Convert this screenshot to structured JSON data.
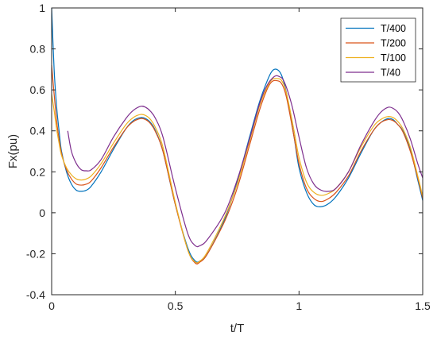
{
  "chart_data": {
    "type": "line",
    "title": "",
    "xlabel": "t/T",
    "ylabel": "Fx(pu)",
    "xlim": [
      0,
      1.5
    ],
    "ylim": [
      -0.4,
      1.0
    ],
    "xticks": [
      0,
      0.5,
      1,
      1.5
    ],
    "xtick_labels": [
      "0",
      "0.5",
      "1",
      "1.5"
    ],
    "yticks": [
      -0.4,
      -0.2,
      0,
      0.2,
      0.4,
      0.6,
      0.8,
      1.0
    ],
    "ytick_labels": [
      "-0.4",
      "-0.2",
      "0",
      "0.2",
      "0.4",
      "0.6",
      "0.8",
      "1"
    ],
    "grid": false,
    "legend_position": "top-right",
    "series": [
      {
        "name": "T/400",
        "color": "#0072BD",
        "x": [
          0.0,
          0.01,
          0.02,
          0.03,
          0.04,
          0.06,
          0.08,
          0.1,
          0.12,
          0.14,
          0.16,
          0.2,
          0.25,
          0.3,
          0.33,
          0.36,
          0.38,
          0.4,
          0.42,
          0.45,
          0.5,
          0.55,
          0.58,
          0.6,
          0.63,
          0.7,
          0.75,
          0.8,
          0.84,
          0.87,
          0.89,
          0.91,
          0.93,
          0.95,
          0.98,
          1.0,
          1.03,
          1.06,
          1.09,
          1.12,
          1.15,
          1.2,
          1.25,
          1.3,
          1.33,
          1.36,
          1.38,
          1.4,
          1.42,
          1.45,
          1.48,
          1.5
        ],
        "y": [
          1.0,
          0.7,
          0.52,
          0.4,
          0.3,
          0.2,
          0.14,
          0.11,
          0.105,
          0.11,
          0.13,
          0.2,
          0.31,
          0.41,
          0.45,
          0.465,
          0.46,
          0.44,
          0.4,
          0.3,
          0.04,
          -0.17,
          -0.235,
          -0.235,
          -0.2,
          -0.03,
          0.15,
          0.37,
          0.54,
          0.64,
          0.69,
          0.7,
          0.67,
          0.58,
          0.37,
          0.22,
          0.1,
          0.04,
          0.03,
          0.045,
          0.08,
          0.17,
          0.29,
          0.4,
          0.44,
          0.46,
          0.455,
          0.43,
          0.4,
          0.31,
          0.16,
          0.06
        ]
      },
      {
        "name": "T/200",
        "color": "#D95319",
        "x": [
          0.0,
          0.01,
          0.02,
          0.03,
          0.04,
          0.06,
          0.08,
          0.1,
          0.12,
          0.14,
          0.16,
          0.2,
          0.25,
          0.3,
          0.33,
          0.36,
          0.38,
          0.4,
          0.42,
          0.45,
          0.5,
          0.55,
          0.58,
          0.6,
          0.63,
          0.7,
          0.75,
          0.8,
          0.84,
          0.87,
          0.89,
          0.91,
          0.93,
          0.95,
          0.98,
          1.0,
          1.03,
          1.06,
          1.09,
          1.12,
          1.15,
          1.2,
          1.25,
          1.3,
          1.33,
          1.36,
          1.38,
          1.4,
          1.42,
          1.45,
          1.48,
          1.5
        ],
        "y": [
          0.72,
          0.58,
          0.45,
          0.36,
          0.29,
          0.21,
          0.165,
          0.14,
          0.135,
          0.14,
          0.155,
          0.22,
          0.32,
          0.41,
          0.445,
          0.46,
          0.455,
          0.435,
          0.395,
          0.3,
          0.04,
          -0.18,
          -0.245,
          -0.24,
          -0.2,
          -0.04,
          0.12,
          0.33,
          0.5,
          0.6,
          0.64,
          0.645,
          0.63,
          0.56,
          0.37,
          0.24,
          0.12,
          0.07,
          0.055,
          0.07,
          0.1,
          0.18,
          0.3,
          0.4,
          0.44,
          0.455,
          0.45,
          0.43,
          0.395,
          0.3,
          0.17,
          0.07
        ]
      },
      {
        "name": "T/100",
        "color": "#EDB120",
        "x": [
          0.0,
          0.01,
          0.02,
          0.03,
          0.04,
          0.06,
          0.08,
          0.1,
          0.12,
          0.14,
          0.16,
          0.2,
          0.25,
          0.3,
          0.33,
          0.36,
          0.38,
          0.4,
          0.42,
          0.45,
          0.5,
          0.55,
          0.58,
          0.6,
          0.63,
          0.7,
          0.75,
          0.8,
          0.84,
          0.87,
          0.89,
          0.91,
          0.93,
          0.95,
          0.98,
          1.0,
          1.03,
          1.06,
          1.09,
          1.12,
          1.15,
          1.2,
          1.25,
          1.3,
          1.33,
          1.36,
          1.38,
          1.4,
          1.42,
          1.45,
          1.48,
          1.5
        ],
        "y": [
          0.58,
          0.5,
          0.41,
          0.34,
          0.28,
          0.22,
          0.185,
          0.165,
          0.16,
          0.165,
          0.18,
          0.24,
          0.34,
          0.43,
          0.465,
          0.48,
          0.475,
          0.455,
          0.415,
          0.32,
          0.05,
          -0.18,
          -0.24,
          -0.235,
          -0.19,
          -0.02,
          0.14,
          0.35,
          0.52,
          0.61,
          0.65,
          0.655,
          0.645,
          0.58,
          0.4,
          0.27,
          0.15,
          0.1,
          0.085,
          0.095,
          0.12,
          0.2,
          0.32,
          0.42,
          0.455,
          0.47,
          0.465,
          0.445,
          0.41,
          0.32,
          0.18,
          0.08
        ]
      },
      {
        "name": "T/40",
        "color": "#7E2F8E",
        "x": [
          0.065,
          0.08,
          0.1,
          0.12,
          0.14,
          0.16,
          0.2,
          0.25,
          0.3,
          0.33,
          0.36,
          0.38,
          0.4,
          0.42,
          0.45,
          0.5,
          0.55,
          0.58,
          0.6,
          0.63,
          0.7,
          0.75,
          0.8,
          0.84,
          0.87,
          0.9,
          0.92,
          0.94,
          0.97,
          1.0,
          1.03,
          1.06,
          1.09,
          1.12,
          1.15,
          1.2,
          1.25,
          1.3,
          1.33,
          1.36,
          1.38,
          1.4,
          1.42,
          1.45,
          1.48,
          1.5
        ],
        "y": [
          0.4,
          0.3,
          0.24,
          0.21,
          0.205,
          0.21,
          0.26,
          0.37,
          0.46,
          0.5,
          0.52,
          0.515,
          0.495,
          0.46,
          0.37,
          0.12,
          -0.1,
          -0.16,
          -0.16,
          -0.13,
          0.0,
          0.16,
          0.36,
          0.53,
          0.62,
          0.665,
          0.665,
          0.64,
          0.53,
          0.37,
          0.22,
          0.14,
          0.11,
          0.105,
          0.12,
          0.2,
          0.33,
          0.44,
          0.49,
          0.515,
          0.51,
          0.49,
          0.45,
          0.36,
          0.24,
          0.17
        ]
      }
    ]
  }
}
